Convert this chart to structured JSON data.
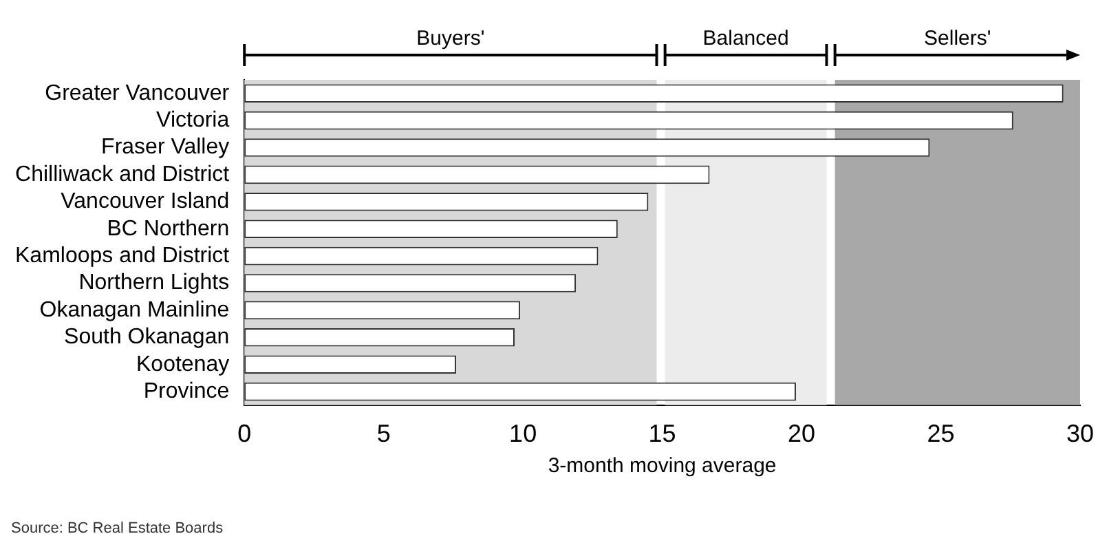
{
  "chart_data": {
    "type": "bar",
    "orientation": "horizontal",
    "xlabel": "3-month moving average",
    "categories": [
      "Greater Vancouver",
      "Victoria",
      "Fraser Valley",
      "Chilliwack and District",
      "Vancouver Island",
      "BC Northern",
      "Kamloops and District",
      "Northern Lights",
      "Okanagan Mainline",
      "South Okanagan",
      "Kootenay",
      "Province"
    ],
    "values": [
      29.4,
      27.6,
      24.6,
      16.7,
      14.5,
      13.4,
      12.7,
      11.9,
      9.9,
      9.7,
      7.6,
      19.8
    ],
    "color": "#ffffff",
    "xlim": [
      0,
      30
    ],
    "xticks": [
      0,
      5,
      10,
      15,
      20,
      25,
      30
    ],
    "bands": [
      {
        "axis": "x",
        "from": 0,
        "to": 14.8,
        "label": "Buyers'",
        "color": "#d8d8d8"
      },
      {
        "axis": "x",
        "from": 15.1,
        "to": 20.9,
        "label": "Balanced",
        "color": "#ececec"
      },
      {
        "axis": "x",
        "from": 21.2,
        "to": 30,
        "label": "Sellers'",
        "color": "#a8a8a8"
      }
    ],
    "annotations": [
      "Source: BC Real Estate Boards"
    ],
    "grid": false,
    "legend": false
  }
}
